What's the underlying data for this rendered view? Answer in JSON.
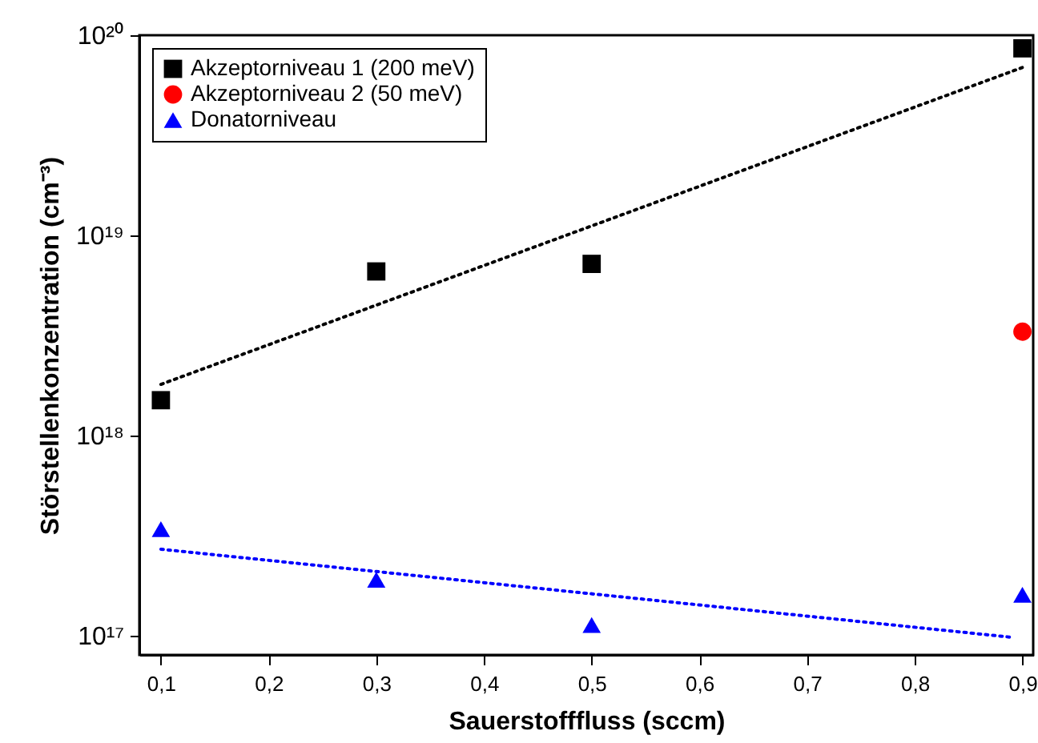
{
  "chart_data": {
    "type": "scatter",
    "xlabel": "Sauerstofffluss (sccm)",
    "ylabel": "Störstellenkonzentration (cm⁻³)",
    "log": "y",
    "legend": "top left",
    "xlim": [
      0.08,
      0.91
    ],
    "ylim": [
      8e+16,
      1e+20
    ],
    "xticks": [
      {
        "value": 0.1,
        "label": "0,1"
      },
      {
        "value": 0.2,
        "label": "0,2"
      },
      {
        "value": 0.3,
        "label": "0,3"
      },
      {
        "value": 0.4,
        "label": "0,4"
      },
      {
        "value": 0.5,
        "label": "0,5"
      },
      {
        "value": 0.6,
        "label": "0,6"
      },
      {
        "value": 0.7,
        "label": "0,7"
      },
      {
        "value": 0.8,
        "label": "0,8"
      },
      {
        "value": 0.9,
        "label": "0,9"
      }
    ],
    "yticks": [
      {
        "value": 1e+17,
        "label": "10¹⁷"
      },
      {
        "value": 1e+18,
        "label": "10¹⁸"
      },
      {
        "value": 1e+19,
        "label": "10¹⁹"
      },
      {
        "value": 1e+20,
        "label": "10²⁰"
      }
    ],
    "series": [
      {
        "name": "Akzeptorniveau 1 (200 meV)",
        "marker": "square",
        "color": "#000000",
        "x": [
          0.1,
          0.3,
          0.5,
          0.9
        ],
        "values": [
          1.5e+18,
          6.6e+18,
          7.2e+18,
          8.6e+19
        ]
      },
      {
        "name": "Akzeptorniveau 2 (50   meV)",
        "marker": "circle",
        "color": "#ff0000",
        "x": [
          0.9
        ],
        "values": [
          3.3e+18
        ]
      },
      {
        "name": "Donatorniveau",
        "marker": "triangle",
        "color": "#0000ff",
        "x": [
          0.1,
          0.3,
          0.5,
          0.9
        ],
        "values": [
          3.4e+17,
          1.9e+17,
          1.13e+17,
          1.6e+17
        ]
      },
      {
        "type": "line",
        "line_style": "dotted",
        "color": "#000000",
        "x": [
          0.1,
          0.9
        ],
        "values": [
          1.8e+18,
          6.9e+19
        ]
      },
      {
        "type": "line",
        "line_style": "dotted",
        "color": "#0000ff",
        "x": [
          0.1,
          0.89
        ],
        "values": [
          2.7e+17,
          9.8e+16
        ]
      }
    ]
  }
}
